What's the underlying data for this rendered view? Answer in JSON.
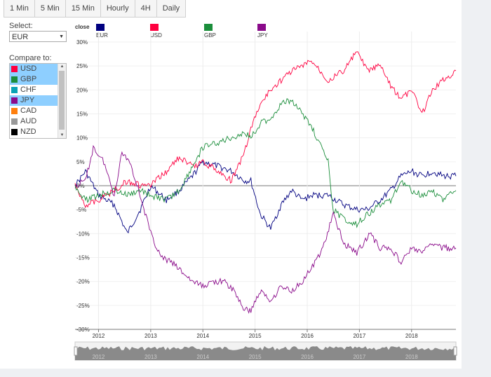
{
  "toolbar": {
    "tabs": [
      "1 Min",
      "5 Min",
      "15 Min",
      "Hourly",
      "4H",
      "Daily"
    ]
  },
  "select": {
    "label": "Select:",
    "value": "EUR"
  },
  "compare": {
    "label": "Compare to:",
    "items": [
      {
        "label": "USD",
        "color": "#ff0040",
        "selected": true
      },
      {
        "label": "GBP",
        "color": "#1b8e3b",
        "selected": true
      },
      {
        "label": "CHF",
        "color": "#0aa3b5",
        "selected": false
      },
      {
        "label": "JPY",
        "color": "#8a0a8a",
        "selected": true
      },
      {
        "label": "CAD",
        "color": "#ff7f0e",
        "selected": false
      },
      {
        "label": "AUD",
        "color": "#999999",
        "selected": false
      },
      {
        "label": "NZD",
        "color": "#000000",
        "selected": false
      }
    ]
  },
  "chart_data": {
    "type": "line",
    "legend_title": "close",
    "y_ticks": [
      "30%",
      "25%",
      "20%",
      "15%",
      "10%",
      "5%",
      "0%",
      "-5%",
      "-10%",
      "-15%",
      "-20%",
      "-25%",
      "-30%"
    ],
    "ylim": [
      -30,
      30
    ],
    "xlim": [
      2011.55,
      2018.85
    ],
    "x_ticks": [
      2012,
      2013,
      2014,
      2015,
      2016,
      2017,
      2018
    ],
    "grid": true,
    "series": [
      {
        "name": "EUR",
        "color": "#000080",
        "x": [
          2011.55,
          2011.75,
          2012.0,
          2012.3,
          2012.55,
          2012.8,
          2013.0,
          2013.3,
          2013.55,
          2013.8,
          2014.0,
          2014.3,
          2014.55,
          2014.8,
          2014.92,
          2015.1,
          2015.3,
          2015.5,
          2015.7,
          2015.9,
          2016.1,
          2016.4,
          2016.7,
          2016.95,
          2017.15,
          2017.4,
          2017.6,
          2017.8,
          2018.0,
          2018.2,
          2018.4,
          2018.6,
          2018.85
        ],
        "y": [
          0,
          3,
          -2,
          -4,
          -10,
          -5,
          0,
          -3,
          -1,
          2,
          5,
          4,
          3,
          1,
          1,
          -6,
          -9,
          -4,
          -1,
          -3,
          -2,
          -2,
          -4,
          -5,
          -5,
          -3,
          -1,
          2,
          3,
          2,
          3,
          2,
          2
        ]
      },
      {
        "name": "USD",
        "color": "#ff0040",
        "x": [
          2011.55,
          2011.75,
          2012.0,
          2012.3,
          2012.55,
          2012.8,
          2013.0,
          2013.3,
          2013.55,
          2013.8,
          2014.0,
          2014.3,
          2014.55,
          2014.8,
          2014.92,
          2015.1,
          2015.3,
          2015.5,
          2015.7,
          2015.9,
          2016.1,
          2016.4,
          2016.7,
          2016.95,
          2017.15,
          2017.4,
          2017.6,
          2017.8,
          2018.0,
          2018.2,
          2018.4,
          2018.6,
          2018.85
        ],
        "y": [
          0,
          -4,
          -3,
          -1,
          1,
          0,
          0,
          3,
          6,
          4,
          5,
          3,
          1,
          7,
          12,
          17,
          20,
          22,
          24,
          25,
          26,
          22,
          24,
          28,
          24,
          25,
          21,
          18,
          20,
          15,
          20,
          22,
          24
        ]
      },
      {
        "name": "GBP",
        "color": "#1b8e3b",
        "x": [
          2011.55,
          2011.75,
          2012.0,
          2012.3,
          2012.55,
          2012.8,
          2013.0,
          2013.3,
          2013.55,
          2013.8,
          2014.0,
          2014.3,
          2014.55,
          2014.8,
          2014.92,
          2015.1,
          2015.3,
          2015.5,
          2015.7,
          2015.9,
          2016.1,
          2016.4,
          2016.5,
          2016.7,
          2016.95,
          2017.15,
          2017.4,
          2017.6,
          2017.8,
          2018.0,
          2018.2,
          2018.4,
          2018.6,
          2018.85
        ],
        "y": [
          0,
          -3,
          -2,
          -1,
          -2,
          -1,
          -2,
          -3,
          -1,
          4,
          8,
          9,
          10,
          11,
          10,
          13,
          14,
          17,
          18,
          15,
          12,
          5,
          -5,
          -7,
          -8,
          -6,
          -4,
          -3,
          1,
          -1,
          -2,
          -1,
          -3,
          -1
        ]
      },
      {
        "name": "JPY",
        "color": "#8a0a8a",
        "x": [
          2011.55,
          2011.75,
          2011.9,
          2012.1,
          2012.3,
          2012.45,
          2012.6,
          2012.8,
          2013.0,
          2013.2,
          2013.4,
          2013.6,
          2013.8,
          2014.0,
          2014.2,
          2014.4,
          2014.6,
          2014.8,
          2014.92,
          2015.1,
          2015.3,
          2015.5,
          2015.7,
          2015.9,
          2016.1,
          2016.3,
          2016.5,
          2016.7,
          2016.95,
          2017.2,
          2017.4,
          2017.6,
          2017.8,
          2018.0,
          2018.2,
          2018.4,
          2018.6,
          2018.85
        ],
        "y": [
          0,
          1,
          8,
          5,
          -2,
          7,
          5,
          -2,
          -10,
          -15,
          -16,
          -18,
          -20,
          -21,
          -20,
          -20,
          -22,
          -26,
          -26,
          -22,
          -24,
          -21,
          -22,
          -20,
          -17,
          -13,
          -6,
          -12,
          -14,
          -10,
          -13,
          -13,
          -16,
          -13,
          -14,
          -12,
          -13,
          -13
        ]
      }
    ]
  }
}
